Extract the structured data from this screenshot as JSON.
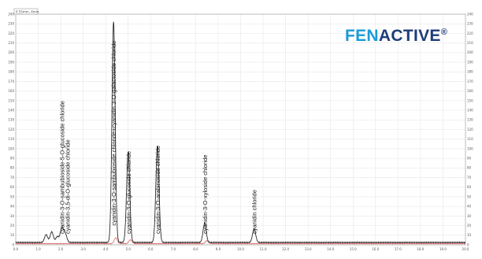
{
  "brand": {
    "name_part1": "FEN",
    "name_part2": "ACTIVE",
    "reg_mark": "®",
    "colors": {
      "fen": "#1a9bd7",
      "active": "#1f3c7a"
    }
  },
  "chart_data": {
    "type": "line",
    "title": "",
    "xlabel": "",
    "ylabel": "",
    "corner_label": "0.55mm, 4mm",
    "xlim": [
      0,
      20
    ],
    "ylim": [
      0,
      240
    ],
    "x_ticks": [
      "0.0",
      "1.0",
      "2.0",
      "3.0",
      "4.0",
      "5.0",
      "6.0",
      "7.0",
      "8.0",
      "9.0",
      "10.0",
      "11.0",
      "12.0",
      "13.0",
      "14.0",
      "15.0",
      "16.0",
      "17.0",
      "18.0",
      "19.0",
      "20.0"
    ],
    "y_ticks": [
      "0",
      "10",
      "20",
      "30",
      "40",
      "50",
      "60",
      "70",
      "80",
      "90",
      "100",
      "110",
      "120",
      "130",
      "140",
      "150",
      "160",
      "170",
      "180",
      "190",
      "200",
      "210",
      "220",
      "230",
      "240"
    ],
    "grid": true,
    "colors": {
      "main": "#2a2a2a",
      "secondary": "#e06b6b",
      "grid": "#dcdcdc"
    },
    "series": [
      {
        "peaks": [
          {
            "rt": 1.35,
            "height": 8
          },
          {
            "rt": 1.6,
            "height": 11
          },
          {
            "rt": 1.85,
            "height": 6
          },
          {
            "rt": 2.05,
            "height": 15
          },
          {
            "rt": 2.2,
            "height": 9
          },
          {
            "rt": 4.35,
            "height": 230
          },
          {
            "rt": 5.0,
            "height": 94
          },
          {
            "rt": 6.3,
            "height": 100
          },
          {
            "rt": 8.4,
            "height": 20
          },
          {
            "rt": 10.6,
            "height": 14
          }
        ]
      },
      {
        "peaks": [
          {
            "rt": 4.45,
            "height": 6
          },
          {
            "rt": 5.1,
            "height": 4
          },
          {
            "rt": 8.5,
            "height": 3
          }
        ]
      }
    ],
    "annotations": [
      {
        "text": "cyanidin-3-O-sambubioside-5-O-glucoside chloride",
        "rt": 2.05
      },
      {
        "text": "cyanidin-3,5-di-O-glucoside chloride",
        "rt": 2.3
      },
      {
        "text": "cyanidin-3-O-sambubioside chloride+cyanidin 3-O-galactoside chloride",
        "rt": 4.35
      },
      {
        "text": "cyanidin-3-O-glucoside chloride",
        "rt": 5.0
      },
      {
        "text": "cyanidin-3-O-arabinoside chloride",
        "rt": 6.3
      },
      {
        "text": "cyanidin-3-O-xyloside chloride",
        "rt": 8.4
      },
      {
        "text": "cyanidin chloride",
        "rt": 10.6
      }
    ]
  }
}
